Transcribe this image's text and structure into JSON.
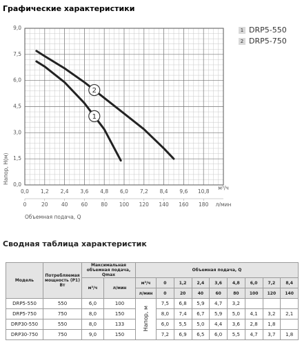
{
  "chart_data": {
    "type": "line",
    "title": "Графические характеристики",
    "xlabel": "Объемная подача, Q",
    "ylabel": "Напор, H(м)",
    "xunit": "м³/ч",
    "x2unit": "л/мин",
    "xlim": [
      0,
      12
    ],
    "xticks": [
      {
        "value": 0,
        "label": "0,0"
      },
      {
        "value": 1.2,
        "label": "1,2"
      },
      {
        "value": 2.4,
        "label": "2,4"
      },
      {
        "value": 3.6,
        "label": "3,6"
      },
      {
        "value": 4.8,
        "label": "4,8"
      },
      {
        "value": 6,
        "label": "6,0"
      },
      {
        "value": 7.2,
        "label": "7,2"
      },
      {
        "value": 8.4,
        "label": "8,4"
      },
      {
        "value": 9.6,
        "label": "9,6"
      },
      {
        "value": 10.8,
        "label": "10,8"
      }
    ],
    "x2lim": [
      0,
      200
    ],
    "x2ticks": [
      0,
      20,
      40,
      60,
      80,
      100,
      120,
      140,
      160,
      180
    ],
    "ylim": [
      0,
      9
    ],
    "yticks": [
      {
        "value": 0,
        "label": "0,0"
      },
      {
        "value": 1.5,
        "label": "1,5"
      },
      {
        "value": 3,
        "label": "3,0"
      },
      {
        "value": 4.5,
        "label": "4,5"
      },
      {
        "value": 6,
        "label": "6,0"
      },
      {
        "value": 7.5,
        "label": "7,5"
      },
      {
        "value": 9,
        "label": "9,0"
      }
    ],
    "grid": true,
    "series": [
      {
        "name": "DRP5-550",
        "label": "1",
        "color": "#222222",
        "x": [
          0.7,
          1.2,
          2.4,
          3.6,
          4.8,
          5.8
        ],
        "values": [
          7.1,
          6.8,
          5.9,
          4.7,
          3.2,
          1.4
        ]
      },
      {
        "name": "DRP5-750",
        "label": "2",
        "color": "#222222",
        "x": [
          0.7,
          1.2,
          2.4,
          3.6,
          4.8,
          6.0,
          7.2,
          8.4,
          9.0
        ],
        "values": [
          7.7,
          7.4,
          6.7,
          5.9,
          5.0,
          4.1,
          3.2,
          2.1,
          1.5
        ]
      }
    ]
  },
  "table": {
    "title": "Сводная таблица характеристик",
    "columns": [
      "Модель",
      "Потребляемая мощность (Р1) Вт",
      "Максимальная объемная подача, Qmax",
      "Объемная подача, Q"
    ],
    "qmax_units": [
      "м³/ч",
      "л/мин"
    ],
    "flow_rows": [
      {
        "unit": "м³/ч",
        "values": [
          "0",
          "1,2",
          "2,4",
          "3,6",
          "4,8",
          "6,0",
          "7,2",
          "8,4"
        ]
      },
      {
        "unit": "л/мин",
        "values": [
          "0",
          "20",
          "40",
          "60",
          "80",
          "100",
          "120",
          "140"
        ]
      }
    ],
    "head_label": "Напор, м",
    "rows": [
      [
        "DRP5-550",
        "550",
        "6,0",
        "100",
        "7,5",
        "6,8",
        "5,9",
        "4,7",
        "3,2",
        null,
        null,
        null
      ],
      [
        "DRP5-750",
        "750",
        "8,0",
        "150",
        "8,0",
        "7,4",
        "6,7",
        "5,9",
        "5,0",
        "4,1",
        "3,2",
        "2,1"
      ],
      [
        "DRP30-550",
        "550",
        "8,0",
        "133",
        "6,0",
        "5,5",
        "5,0",
        "4,4",
        "3,6",
        "2,8",
        "1,8",
        null
      ],
      [
        "DRP30-750",
        "750",
        "9,0",
        "150",
        "7,2",
        "6,9",
        "6,5",
        "6,0",
        "5,5",
        "4,7",
        "3,7",
        "1,8"
      ]
    ]
  }
}
